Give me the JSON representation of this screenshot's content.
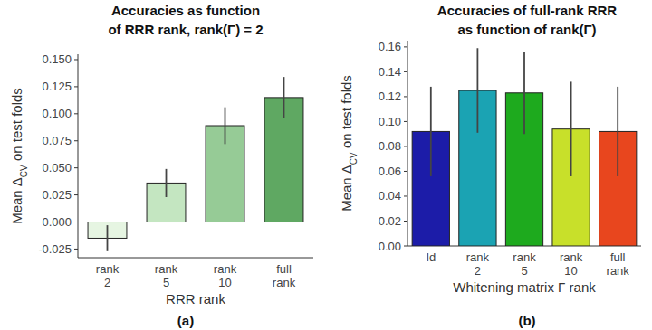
{
  "chart_data": [
    {
      "type": "bar",
      "title": [
        "Accuracies as function",
        "of RRR rank, rank(Γ) = 2"
      ],
      "x_label": "RRR rank",
      "y_label": [
        "Mean Δ",
        "CV",
        " on test folds"
      ],
      "panel_label": "(a)",
      "categories": [
        "rank 2",
        "rank 5",
        "rank 10",
        "full rank"
      ],
      "values": [
        -0.015,
        0.036,
        0.089,
        0.115
      ],
      "errors": [
        0.012,
        0.013,
        0.017,
        0.019
      ],
      "colors": [
        "#e6f5e2",
        "#c4e6c1",
        "#96cb96",
        "#5fa862"
      ],
      "ylim": [
        -0.033,
        0.155
      ],
      "yticks": [
        -0.025,
        {
          "value": 0,
          "label": "0.000"
        },
        0.025,
        {
          "value": 0.05,
          "label": "0.050"
        },
        0.075,
        {
          "value": 0.1,
          "label": "0.100"
        },
        0.125,
        {
          "value": 0.15,
          "label": "0.150"
        }
      ],
      "grid": false
    },
    {
      "type": "bar",
      "title": [
        "Accuracies of full-rank RRR",
        "as function of rank(Γ)"
      ],
      "x_label": "Whitening matrix Γ rank",
      "y_label": [
        "Mean Δ",
        "CV",
        " on test folds"
      ],
      "panel_label": "(b)",
      "categories": [
        "Id",
        "rank 2",
        "rank 5",
        "rank 10",
        "full rank"
      ],
      "values": [
        0.092,
        0.125,
        0.123,
        0.094,
        0.092
      ],
      "errors": [
        0.036,
        0.034,
        0.033,
        0.038,
        0.036
      ],
      "colors": [
        "#1c1ca8",
        "#1ba3b3",
        "#1eaa1e",
        "#c8e02a",
        "#e8461e"
      ],
      "ylim": [
        0,
        0.165
      ],
      "yticks": [
        {
          "value": 0,
          "label": "0.00"
        },
        0.02,
        0.04,
        0.06,
        0.08,
        {
          "value": 0.1,
          "label": "0.10"
        },
        0.12,
        0.14,
        0.16
      ],
      "grid": false
    }
  ]
}
